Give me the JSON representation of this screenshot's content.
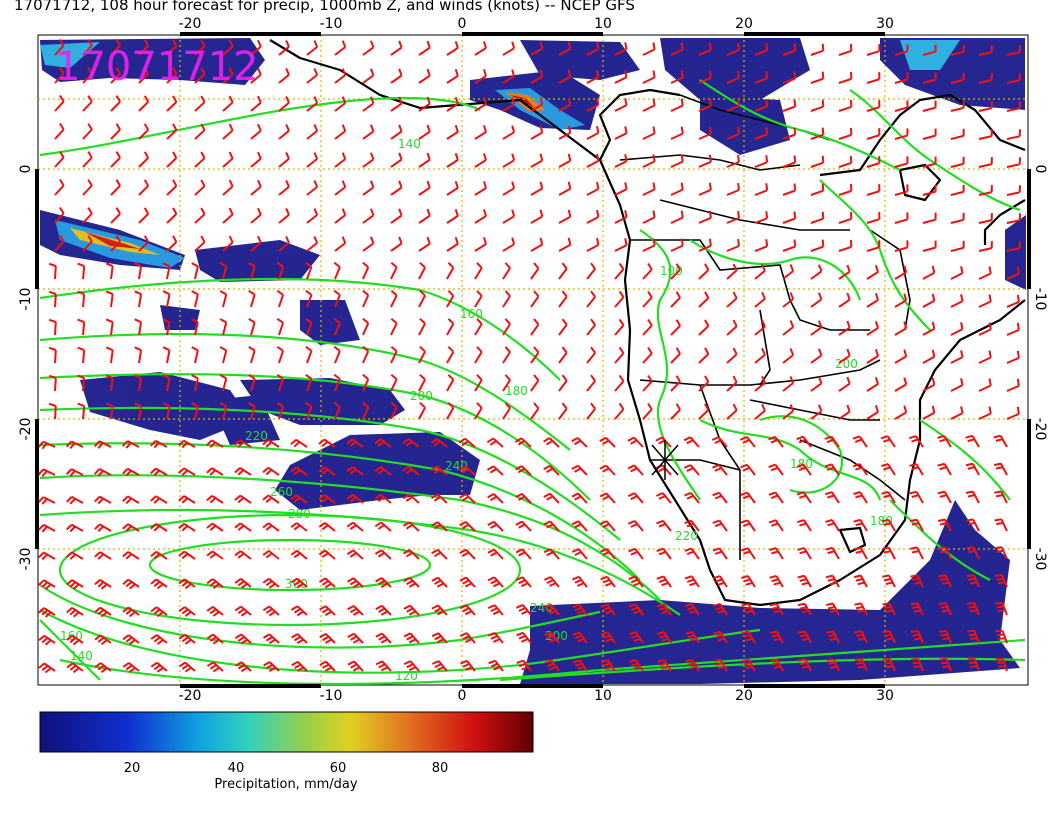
{
  "title": "17071712, 108 hour forecast for precip, 1000mb Z, and winds (knots) -- NCEP GFS",
  "stamp": "17071712",
  "colors": {
    "contour": "#22dd22",
    "barb": "#ee1111",
    "coast": "#000000",
    "grid": "#d6b400",
    "stamp": "#ee22ee",
    "precip_low": "#1a1a8c"
  },
  "axes": {
    "lon_ticks": [
      "-20",
      "-10",
      "0",
      "10",
      "20",
      "30"
    ],
    "lat_ticks": [
      "0",
      "-10",
      "-20",
      "-30"
    ],
    "lon_range": [
      -30,
      40
    ],
    "lat_range": [
      -40,
      10
    ]
  },
  "contour_labels": [
    "140",
    "160",
    "180",
    "200",
    "220",
    "240",
    "260",
    "280",
    "300",
    "180",
    "200",
    "100",
    "240",
    "220",
    "200",
    "180",
    "160",
    "140",
    "120"
  ],
  "colorbar": {
    "label": "Precipitation, mm/day",
    "ticks": [
      "20",
      "40",
      "60",
      "80"
    ],
    "range": [
      0,
      100
    ]
  }
}
